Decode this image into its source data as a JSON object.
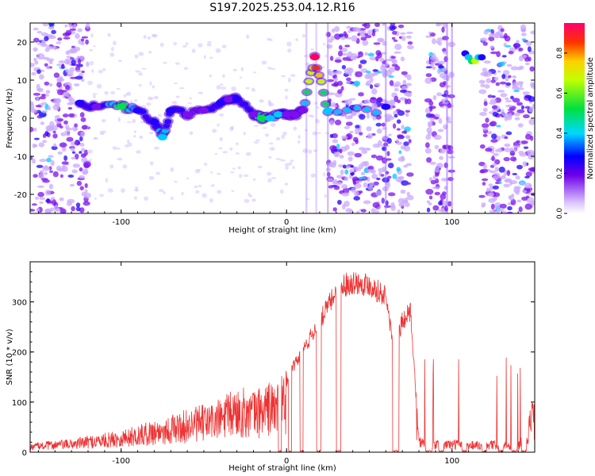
{
  "title": "S197.2025.253.04.12.R16",
  "chart_data": [
    {
      "type": "heatmap",
      "title": "S197.2025.253.04.12.R16",
      "xlabel": "Height of straight line (km)",
      "ylabel": "Frequency (Hz)",
      "xlim": [
        -155,
        150
      ],
      "ylim": [
        -25,
        25
      ],
      "xticks": [
        -100,
        0,
        100
      ],
      "xtick_labels": [
        "-100",
        "0",
        "100"
      ],
      "yticks": [
        -20,
        -10,
        0,
        10,
        20
      ],
      "ytick_labels": [
        "-20",
        "-10",
        "0",
        "10",
        "20"
      ],
      "colorbar": {
        "label": "Normalized spectral amplitude",
        "range": [
          0,
          0.95
        ],
        "ticks": [
          0.0,
          0.2,
          0.4,
          0.6,
          0.8
        ],
        "tick_labels": [
          "0.0",
          "0.2",
          "0.4",
          "0.6",
          "0.8"
        ]
      },
      "ridge": {
        "x": [
          -125,
          -115,
          -100,
          -90,
          -80,
          -75,
          -70,
          -60,
          -50,
          -40,
          -35,
          -30,
          -20,
          -15,
          -10,
          -5,
          0,
          5,
          10,
          17,
          25,
          60
        ],
        "freq": [
          4,
          3,
          3,
          2,
          -1,
          -5,
          2,
          1,
          2,
          4,
          5,
          5,
          1,
          0,
          0,
          1,
          1,
          1,
          2,
          16,
          2,
          3
        ],
        "amplitude": [
          0.4,
          0.3,
          0.6,
          0.4,
          0.35,
          0.45,
          0.35,
          0.3,
          0.3,
          0.35,
          0.3,
          0.4,
          0.3,
          0.6,
          0.45,
          0.5,
          0.3,
          0.3,
          0.3,
          0.95,
          0.45,
          0.4
        ]
      },
      "high_line": {
        "x": [
          108,
          110,
          112,
          114,
          116,
          118
        ],
        "freq": [
          17,
          16,
          15,
          15,
          16,
          16
        ],
        "amplitude": [
          0.4,
          0.5,
          0.6,
          0.7,
          0.5,
          0.4
        ]
      },
      "noise_regions": [
        [
          -155,
          -120
        ],
        [
          25,
          75
        ],
        [
          85,
          100
        ],
        [
          118,
          150
        ]
      ]
    },
    {
      "type": "line",
      "xlabel": "Height of straight line (km)",
      "ylabel": "SNR (10 * v/v)",
      "xlim": [
        -155,
        150
      ],
      "ylim": [
        0,
        380
      ],
      "xticks": [
        -100,
        0,
        100
      ],
      "xtick_labels": [
        "-100",
        "0",
        "100"
      ],
      "yticks": [
        0,
        100,
        200,
        300
      ],
      "ytick_labels": [
        "0",
        "100",
        "200",
        "300"
      ],
      "color": "#ee3333",
      "series": [
        {
          "name": "SNR",
          "x": [
            -155,
            -140,
            -130,
            -120,
            -110,
            -100,
            -90,
            -80,
            -70,
            -60,
            -50,
            -40,
            -30,
            -20,
            -10,
            -5,
            0,
            5,
            10,
            15,
            20,
            25,
            30,
            35,
            40,
            50,
            60,
            65,
            70,
            75,
            80,
            85,
            90,
            100,
            110,
            120,
            130,
            140,
            145,
            150
          ],
          "y": [
            15,
            20,
            22,
            28,
            32,
            38,
            45,
            55,
            62,
            72,
            80,
            90,
            110,
            105,
            120,
            120,
            145,
            180,
            210,
            240,
            270,
            300,
            330,
            345,
            350,
            345,
            320,
            210,
            270,
            290,
            30,
            20,
            20,
            22,
            20,
            20,
            20,
            15,
            50,
            100
          ]
        }
      ],
      "dropouts": [
        [
          -5,
          -3
        ],
        [
          1,
          3
        ],
        [
          8,
          10
        ],
        [
          18,
          21
        ],
        [
          30,
          33
        ],
        [
          64,
          68
        ],
        [
          84,
          88
        ],
        [
          92,
          95
        ],
        [
          106,
          109
        ],
        [
          118,
          121
        ],
        [
          128,
          131
        ],
        [
          136,
          139
        ],
        [
          142,
          145
        ]
      ]
    }
  ]
}
